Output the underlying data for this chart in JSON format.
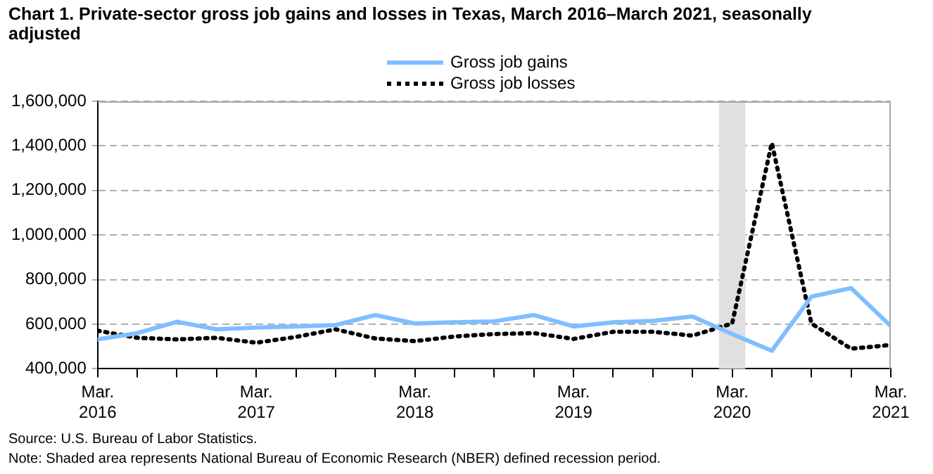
{
  "chart_data": {
    "type": "line",
    "title": "Chart 1. Private-sector gross job gains and losses in Texas, March 2016–March 2021, seasonally adjusted",
    "x": [
      "2016-03",
      "2016-06",
      "2016-09",
      "2016-12",
      "2017-03",
      "2017-06",
      "2017-09",
      "2017-12",
      "2018-03",
      "2018-06",
      "2018-09",
      "2018-12",
      "2019-03",
      "2019-06",
      "2019-09",
      "2019-12",
      "2020-03",
      "2020-06",
      "2020-09",
      "2020-12",
      "2021-03"
    ],
    "series": [
      {
        "name": "Gross job gains",
        "color": "#7fbfff",
        "line_style": "solid",
        "values": [
          532000,
          560000,
          611000,
          577000,
          585000,
          590000,
          596000,
          641000,
          603000,
          609000,
          613000,
          641000,
          590000,
          609000,
          615000,
          635000,
          556000,
          481000,
          724000,
          762000,
          592000
        ]
      },
      {
        "name": "Gross job losses",
        "color": "#000000",
        "line_style": "dotted",
        "values": [
          571000,
          539000,
          532000,
          539000,
          517000,
          543000,
          577000,
          536000,
          524000,
          545000,
          556000,
          560000,
          534000,
          566000,
          566000,
          549000,
          603000,
          1413000,
          603000,
          490000,
          507000
        ]
      }
    ],
    "xlim": [
      "2016-03",
      "2021-03"
    ],
    "xticks": [
      {
        "value": "2016-03",
        "label": "Mar.\n2016"
      },
      {
        "value": "2016-06",
        "label": null
      },
      {
        "value": "2016-09",
        "label": null
      },
      {
        "value": "2016-12",
        "label": null
      },
      {
        "value": "2017-03",
        "label": "Mar.\n2017"
      },
      {
        "value": "2017-06",
        "label": null
      },
      {
        "value": "2017-09",
        "label": null
      },
      {
        "value": "2017-12",
        "label": null
      },
      {
        "value": "2018-03",
        "label": "Mar.\n2018"
      },
      {
        "value": "2018-06",
        "label": null
      },
      {
        "value": "2018-09",
        "label": null
      },
      {
        "value": "2018-12",
        "label": null
      },
      {
        "value": "2019-03",
        "label": "Mar.\n2019"
      },
      {
        "value": "2019-06",
        "label": null
      },
      {
        "value": "2019-09",
        "label": null
      },
      {
        "value": "2019-12",
        "label": null
      },
      {
        "value": "2020-03",
        "label": "Mar.\n2020"
      },
      {
        "value": "2020-06",
        "label": null
      },
      {
        "value": "2020-09",
        "label": null
      },
      {
        "value": "2020-12",
        "label": null
      },
      {
        "value": "2021-03",
        "label": "Mar.\n2021"
      }
    ],
    "ylim": [
      400000,
      1600000
    ],
    "yticks": [
      {
        "value": 400000,
        "label": "400,000"
      },
      {
        "value": 600000,
        "label": "600,000"
      },
      {
        "value": 800000,
        "label": "800,000"
      },
      {
        "value": 1000000,
        "label": "1,000,000"
      },
      {
        "value": 1200000,
        "label": "1,200,000"
      },
      {
        "value": 1400000,
        "label": "1,400,000"
      },
      {
        "value": 1600000,
        "label": "1,600,000"
      }
    ],
    "bands": [
      {
        "axis": "x",
        "from": "2020-02",
        "to": "2020-04",
        "color": "#e0e0e0"
      }
    ],
    "grid": "y",
    "legend": "top",
    "marker": "none",
    "annotations": [
      "Source: U.S. Bureau of Labor Statistics.",
      "Note: Shaded area represents National Bureau of Economic Research (NBER) defined recession period."
    ]
  }
}
